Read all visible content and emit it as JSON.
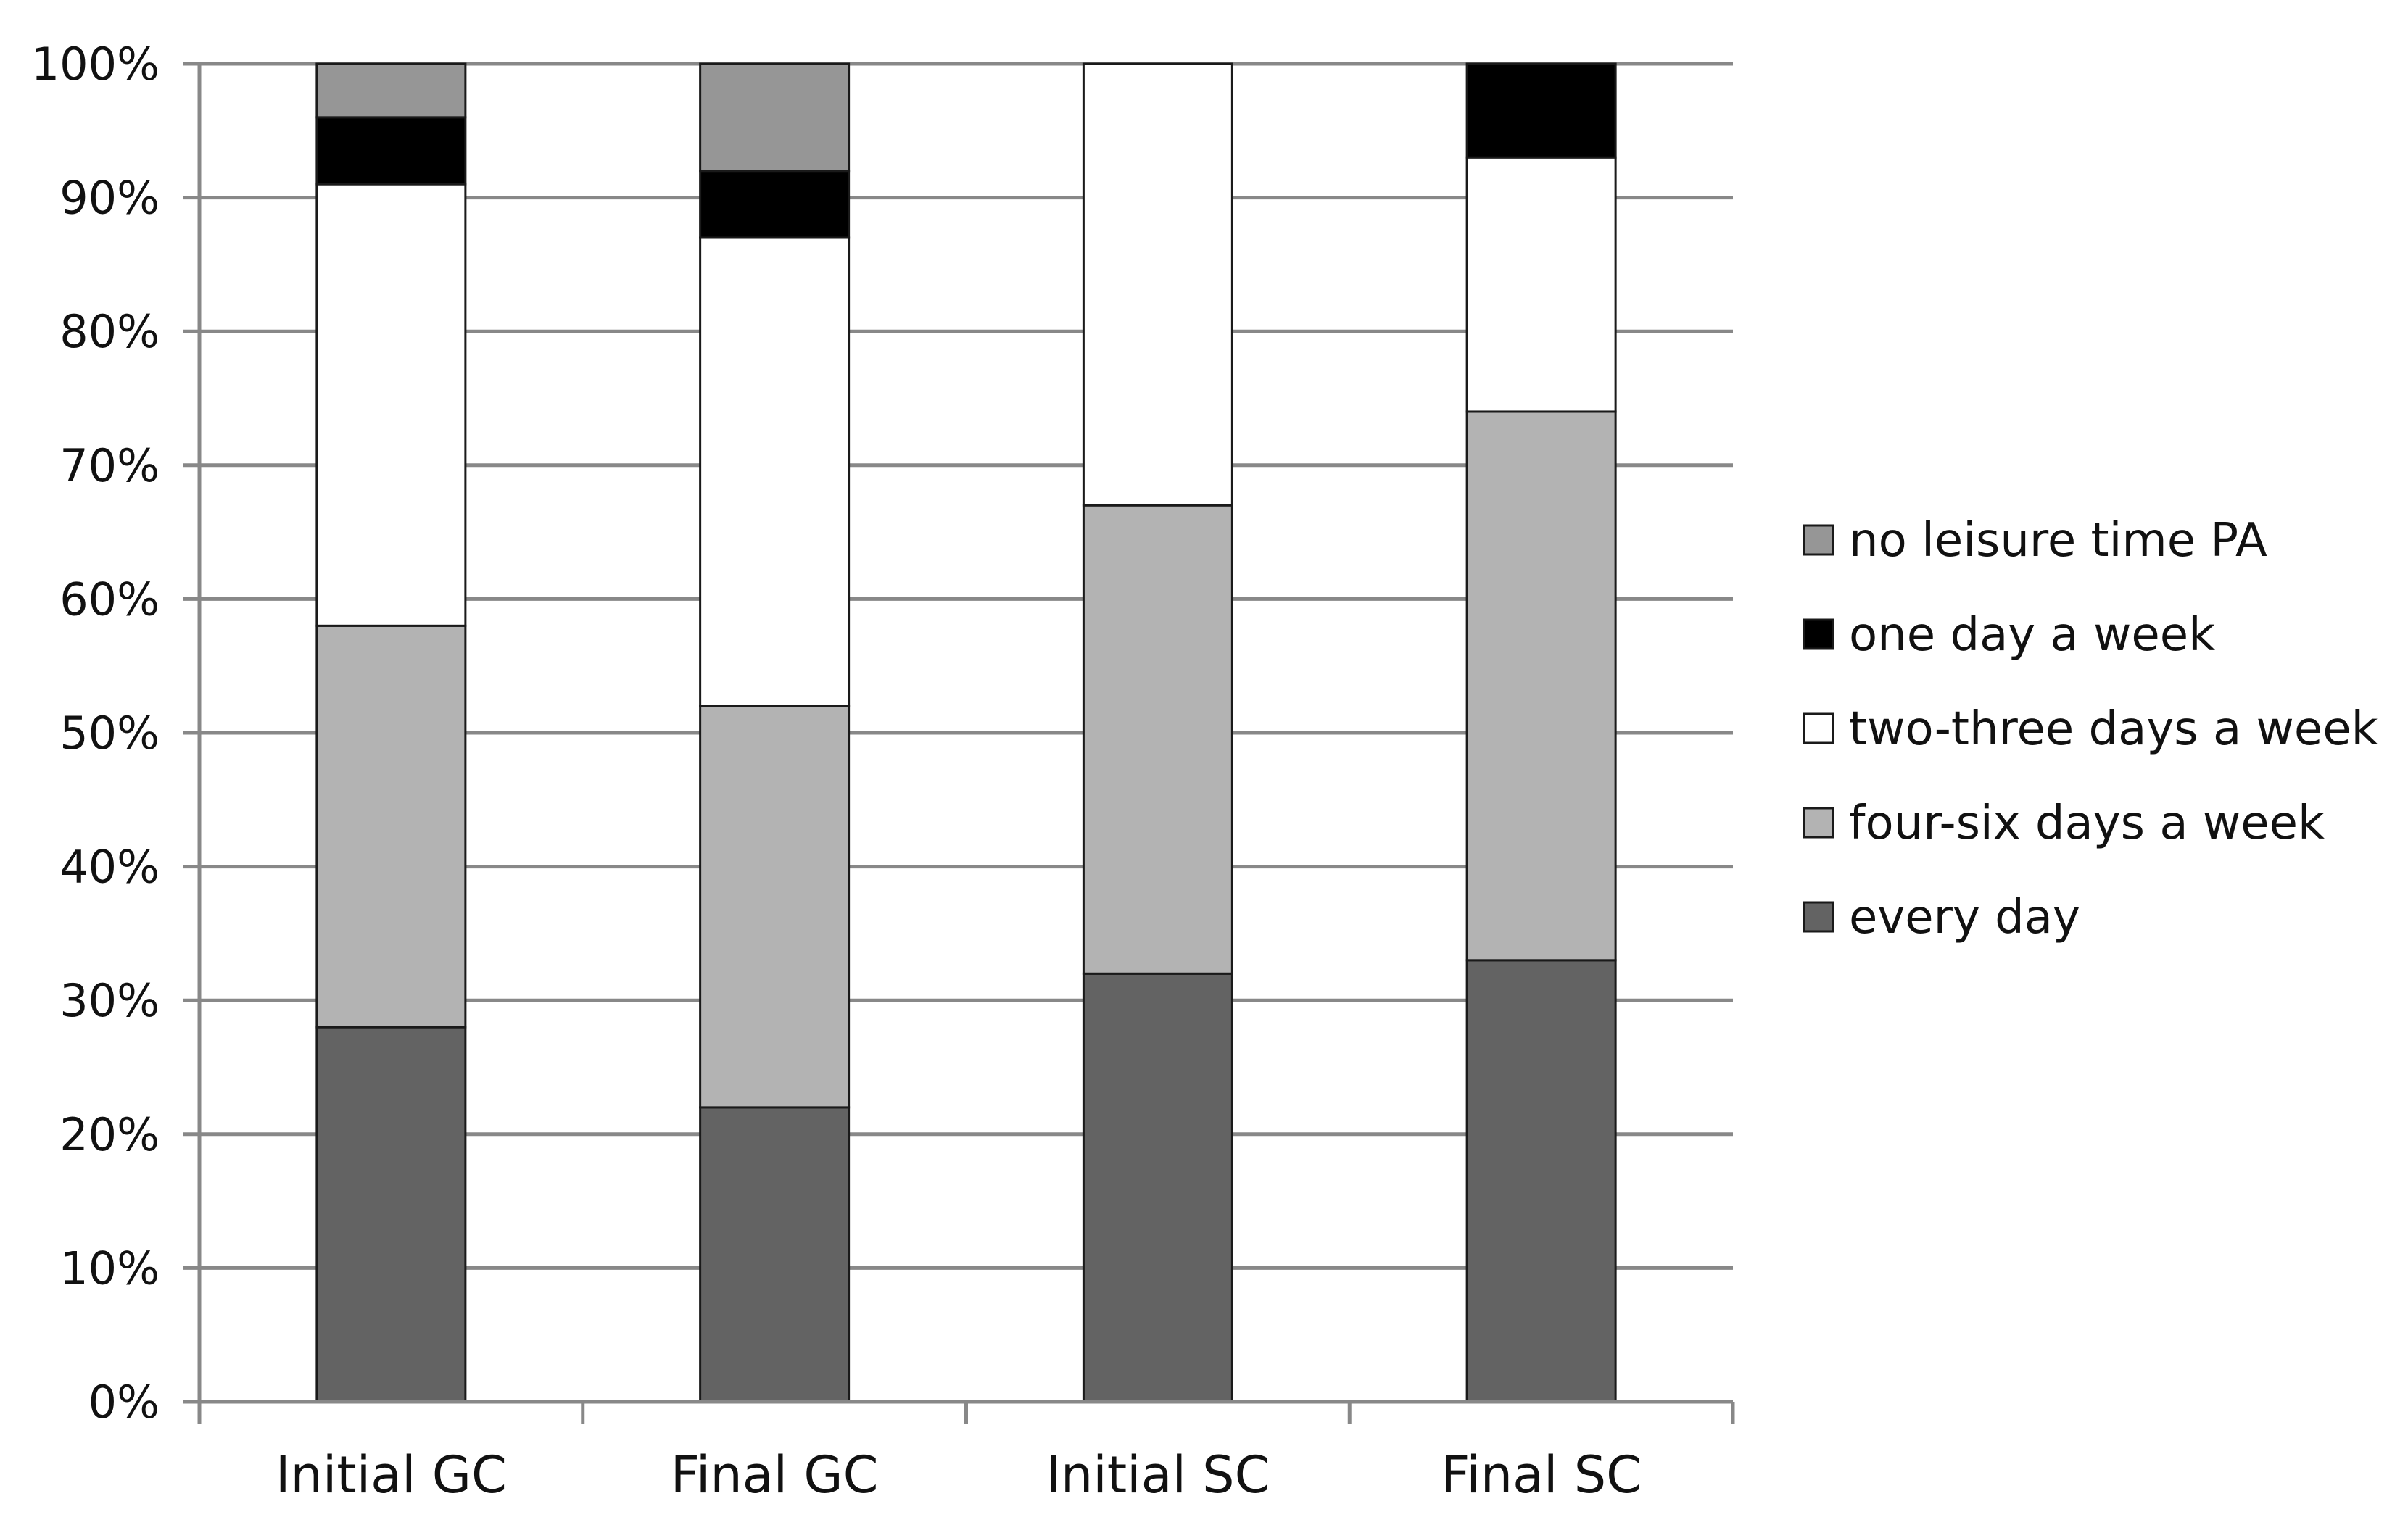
{
  "chart_data": {
    "type": "bar",
    "stacked": true,
    "title": "",
    "xlabel": "",
    "ylabel": "",
    "ylim": [
      0,
      100
    ],
    "y_ticks": [
      "0%",
      "10%",
      "20%",
      "30%",
      "40%",
      "50%",
      "60%",
      "70%",
      "80%",
      "90%",
      "100%"
    ],
    "grid": true,
    "legend_position": "right",
    "categories": [
      "Initial GC",
      "Final GC",
      "Initial SC",
      "Final SC"
    ],
    "series": [
      {
        "name": "every day",
        "color": "#636363",
        "values": [
          28,
          22,
          32,
          33
        ]
      },
      {
        "name": "four-six days a week",
        "color": "#b3b3b3",
        "values": [
          30,
          30,
          35,
          41
        ]
      },
      {
        "name": "two-three days a week",
        "color": "#ffffff",
        "values": [
          33,
          35,
          33,
          19
        ]
      },
      {
        "name": "one day a week",
        "color": "#000000",
        "values": [
          5,
          5,
          0,
          7
        ]
      },
      {
        "name": "no leisure time PA",
        "color": "#969696",
        "values": [
          4,
          8,
          0,
          0
        ]
      }
    ],
    "legend_order": [
      "no leisure time PA",
      "one day a week",
      "two-three days a week",
      "four-six days a week",
      "every day"
    ]
  }
}
